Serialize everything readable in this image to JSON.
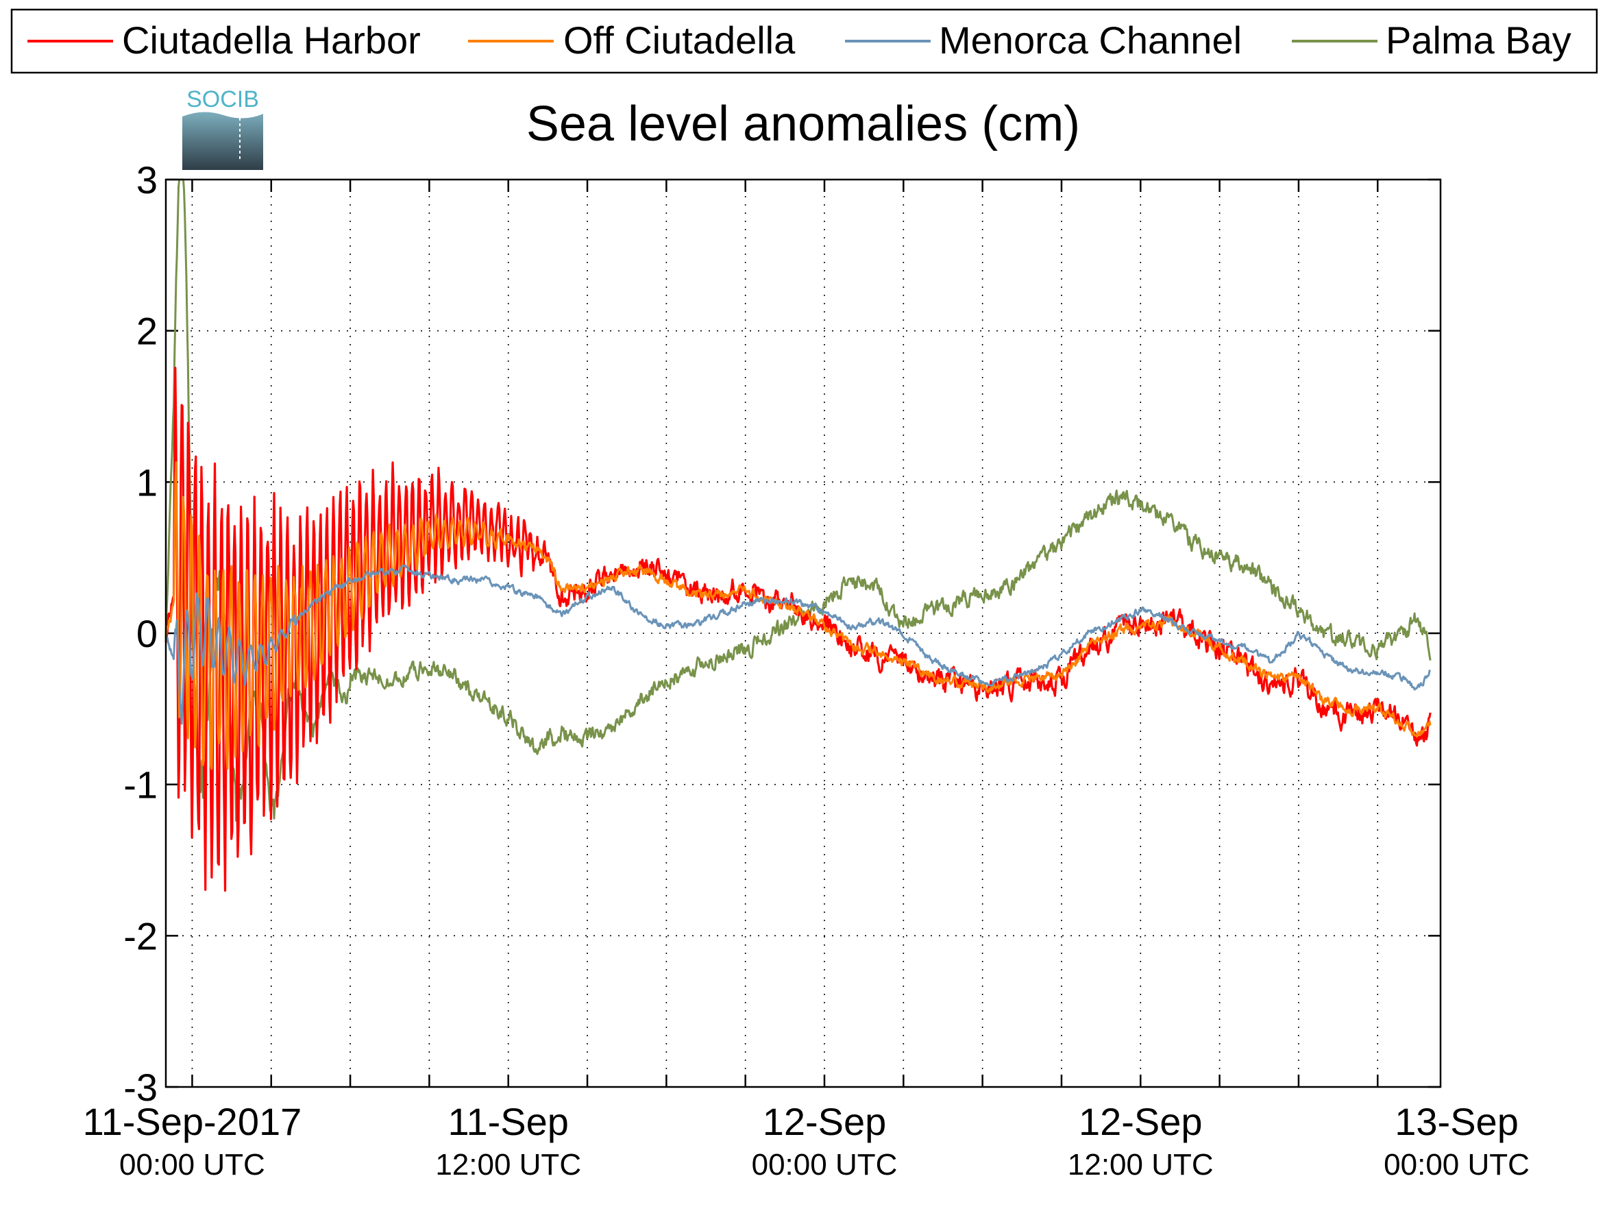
{
  "chart_data": {
    "type": "line",
    "title": "Sea level anomalies (cm)",
    "xlabel": "",
    "ylabel": "",
    "ylim": [
      -3,
      3
    ],
    "yticks": [
      -3,
      -2,
      -1,
      0,
      1,
      2,
      3
    ],
    "y_tick_labels": [
      "-3",
      "-2",
      "-1",
      "0",
      "1",
      "2",
      "3"
    ],
    "x_range_hours": [
      -1,
      47
    ],
    "x_tick_labels": [
      {
        "hours": 0,
        "line1": "11-Sep-2017",
        "line2": "00:00 UTC"
      },
      {
        "hours": 12,
        "line1": "11-Sep",
        "line2": "12:00 UTC"
      },
      {
        "hours": 24,
        "line1": "12-Sep",
        "line2": "00:00 UTC"
      },
      {
        "hours": 36,
        "line1": "12-Sep",
        "line2": "12:00 UTC"
      },
      {
        "hours": 48,
        "line1": "13-Sep",
        "line2": "00:00 UTC"
      }
    ],
    "x_minor_ticks_hours": [
      3,
      6,
      9,
      15,
      18,
      21,
      27,
      30,
      33,
      39,
      42,
      45
    ],
    "grid": true,
    "legend_position": "top",
    "logo_text": "SOCIB",
    "series": [
      {
        "name": "Ciutadella Harbor",
        "color": "#ff0000",
        "key_points": [
          [
            -1,
            0
          ],
          [
            -0.5,
            0.5
          ],
          [
            0,
            0
          ],
          [
            0.5,
            -0.2
          ],
          [
            1,
            -0.3
          ],
          [
            2,
            -0.3
          ],
          [
            3,
            -0.2
          ],
          [
            4,
            -0.1
          ],
          [
            5,
            0.1
          ],
          [
            6,
            0.35
          ],
          [
            7,
            0.5
          ],
          [
            8,
            0.6
          ],
          [
            9,
            0.7
          ],
          [
            10,
            0.72
          ],
          [
            11,
            0.7
          ],
          [
            12,
            0.65
          ],
          [
            13,
            0.55
          ],
          [
            13.5,
            0.5
          ],
          [
            14,
            0.25
          ],
          [
            15,
            0.3
          ],
          [
            16,
            0.4
          ],
          [
            17,
            0.45
          ],
          [
            18,
            0.38
          ],
          [
            19,
            0.25
          ],
          [
            20,
            0.25
          ],
          [
            21,
            0.3
          ],
          [
            22,
            0.22
          ],
          [
            23,
            0.18
          ],
          [
            24,
            0.05
          ],
          [
            25,
            -0.1
          ],
          [
            26,
            -0.15
          ],
          [
            27,
            -0.2
          ],
          [
            28,
            -0.3
          ],
          [
            29,
            -0.35
          ],
          [
            30,
            -0.35
          ],
          [
            31,
            -0.35
          ],
          [
            32,
            -0.3
          ],
          [
            33,
            -0.3
          ],
          [
            34,
            -0.1
          ],
          [
            35,
            0
          ],
          [
            36,
            0.05
          ],
          [
            37,
            0.1
          ],
          [
            38,
            0
          ],
          [
            39,
            -0.1
          ],
          [
            40,
            -0.2
          ],
          [
            41,
            -0.35
          ],
          [
            42,
            -0.3
          ],
          [
            43,
            -0.5
          ],
          [
            44,
            -0.55
          ],
          [
            45,
            -0.5
          ],
          [
            46,
            -0.6
          ],
          [
            46.5,
            -0.75
          ],
          [
            47,
            -0.6
          ]
        ],
        "noise": 0.07,
        "oscillation": {
          "start": -0.7,
          "end": 13.5,
          "amp_start": 1.7,
          "amp_end": 0.12,
          "period": 0.25
        }
      },
      {
        "name": "Off Ciutadella",
        "color": "#ff8000",
        "key_points": [
          [
            -1,
            0
          ],
          [
            -0.5,
            0.3
          ],
          [
            0,
            0
          ],
          [
            0.5,
            -0.15
          ],
          [
            1,
            -0.2
          ],
          [
            2,
            -0.2
          ],
          [
            3,
            -0.1
          ],
          [
            4,
            0
          ],
          [
            5,
            0.1
          ],
          [
            6,
            0.3
          ],
          [
            7,
            0.45
          ],
          [
            8,
            0.55
          ],
          [
            9,
            0.65
          ],
          [
            10,
            0.68
          ],
          [
            11,
            0.65
          ],
          [
            12,
            0.62
          ],
          [
            13,
            0.55
          ],
          [
            13.5,
            0.5
          ],
          [
            14,
            0.3
          ],
          [
            15,
            0.3
          ],
          [
            16,
            0.38
          ],
          [
            17,
            0.42
          ],
          [
            18,
            0.35
          ],
          [
            19,
            0.25
          ],
          [
            20,
            0.25
          ],
          [
            21,
            0.28
          ],
          [
            22,
            0.2
          ],
          [
            23,
            0.15
          ],
          [
            24,
            0.05
          ],
          [
            25,
            -0.1
          ],
          [
            26,
            -0.12
          ],
          [
            27,
            -0.2
          ],
          [
            28,
            -0.28
          ],
          [
            29,
            -0.32
          ],
          [
            30,
            -0.35
          ],
          [
            31,
            -0.33
          ],
          [
            32,
            -0.3
          ],
          [
            33,
            -0.28
          ],
          [
            34,
            -0.1
          ],
          [
            35,
            0
          ],
          [
            36,
            0.05
          ],
          [
            37,
            0.08
          ],
          [
            38,
            0
          ],
          [
            39,
            -0.1
          ],
          [
            40,
            -0.2
          ],
          [
            41,
            -0.3
          ],
          [
            42,
            -0.3
          ],
          [
            43,
            -0.45
          ],
          [
            44,
            -0.5
          ],
          [
            45,
            -0.5
          ],
          [
            46,
            -0.6
          ],
          [
            46.5,
            -0.7
          ],
          [
            47,
            -0.6
          ]
        ],
        "noise": 0.03,
        "oscillation": {
          "start": -0.7,
          "end": 12,
          "amp_start": 0.9,
          "amp_end": 0.05,
          "period": 0.3
        }
      },
      {
        "name": "Menorca Channel",
        "color": "#6a93b8",
        "key_points": [
          [
            -1,
            0
          ],
          [
            -0.5,
            -0.3
          ],
          [
            0,
            0
          ],
          [
            0.5,
            0.05
          ],
          [
            1,
            -0.1
          ],
          [
            2,
            -0.2
          ],
          [
            3,
            -0.1
          ],
          [
            4,
            0.1
          ],
          [
            5,
            0.25
          ],
          [
            6,
            0.35
          ],
          [
            7,
            0.4
          ],
          [
            8,
            0.42
          ],
          [
            9,
            0.38
          ],
          [
            10,
            0.35
          ],
          [
            11,
            0.35
          ],
          [
            12,
            0.3
          ],
          [
            13,
            0.25
          ],
          [
            14,
            0.12
          ],
          [
            15,
            0.25
          ],
          [
            16,
            0.3
          ],
          [
            17,
            0.12
          ],
          [
            18,
            0.05
          ],
          [
            19,
            0.05
          ],
          [
            20,
            0.12
          ],
          [
            21,
            0.2
          ],
          [
            22,
            0.22
          ],
          [
            23,
            0.2
          ],
          [
            24,
            0.15
          ],
          [
            25,
            0.05
          ],
          [
            26,
            0.08
          ],
          [
            27,
            0
          ],
          [
            28,
            -0.18
          ],
          [
            29,
            -0.25
          ],
          [
            30,
            -0.32
          ],
          [
            31,
            -0.3
          ],
          [
            32,
            -0.25
          ],
          [
            33,
            -0.15
          ],
          [
            34,
            0
          ],
          [
            35,
            0.08
          ],
          [
            36,
            0.15
          ],
          [
            37,
            0.1
          ],
          [
            38,
            0
          ],
          [
            39,
            -0.05
          ],
          [
            40,
            -0.1
          ],
          [
            41,
            -0.2
          ],
          [
            42,
            0
          ],
          [
            43,
            -0.15
          ],
          [
            44,
            -0.25
          ],
          [
            45,
            -0.25
          ],
          [
            46,
            -0.3
          ],
          [
            46.5,
            -0.38
          ],
          [
            47,
            -0.25
          ]
        ],
        "noise": 0.02,
        "oscillation": {
          "start": -0.7,
          "end": 4,
          "amp_start": 0.35,
          "amp_end": 0.05,
          "period": 0.4
        }
      },
      {
        "name": "Palma Bay",
        "color": "#78924a",
        "key_points": [
          [
            -1,
            0
          ],
          [
            -0.7,
            1.5
          ],
          [
            -0.4,
            2.7
          ],
          [
            0,
            0
          ],
          [
            1,
            -0.3
          ],
          [
            2,
            -0.7
          ],
          [
            3,
            -0.9
          ],
          [
            4,
            -0.5
          ],
          [
            5,
            -0.45
          ],
          [
            6,
            -0.3
          ],
          [
            7,
            -0.3
          ],
          [
            8,
            -0.3
          ],
          [
            9,
            -0.2
          ],
          [
            10,
            -0.3
          ],
          [
            11,
            -0.45
          ],
          [
            12,
            -0.55
          ],
          [
            13,
            -0.75
          ],
          [
            14,
            -0.65
          ],
          [
            15,
            -0.7
          ],
          [
            16,
            -0.6
          ],
          [
            17,
            -0.45
          ],
          [
            18,
            -0.3
          ],
          [
            19,
            -0.25
          ],
          [
            20,
            -0.15
          ],
          [
            21,
            -0.1
          ],
          [
            22,
            0
          ],
          [
            23,
            0.1
          ],
          [
            24,
            0.2
          ],
          [
            25,
            0.35
          ],
          [
            26,
            0.3
          ],
          [
            27,
            0.05
          ],
          [
            28,
            0.15
          ],
          [
            29,
            0.2
          ],
          [
            30,
            0.25
          ],
          [
            31,
            0.3
          ],
          [
            32,
            0.45
          ],
          [
            33,
            0.6
          ],
          [
            34,
            0.75
          ],
          [
            35,
            0.9
          ],
          [
            36,
            0.85
          ],
          [
            37,
            0.75
          ],
          [
            38,
            0.6
          ],
          [
            39,
            0.5
          ],
          [
            40,
            0.45
          ],
          [
            41,
            0.3
          ],
          [
            42,
            0.15
          ],
          [
            43,
            0
          ],
          [
            44,
            -0.05
          ],
          [
            45,
            -0.1
          ],
          [
            46,
            0
          ],
          [
            46.5,
            0.1
          ],
          [
            47,
            -0.1
          ]
        ],
        "noise": 0.05,
        "oscillation": {
          "start": -0.7,
          "end": 6,
          "amp_start": 1.2,
          "amp_end": 0.1,
          "period": 1.4
        }
      }
    ]
  }
}
